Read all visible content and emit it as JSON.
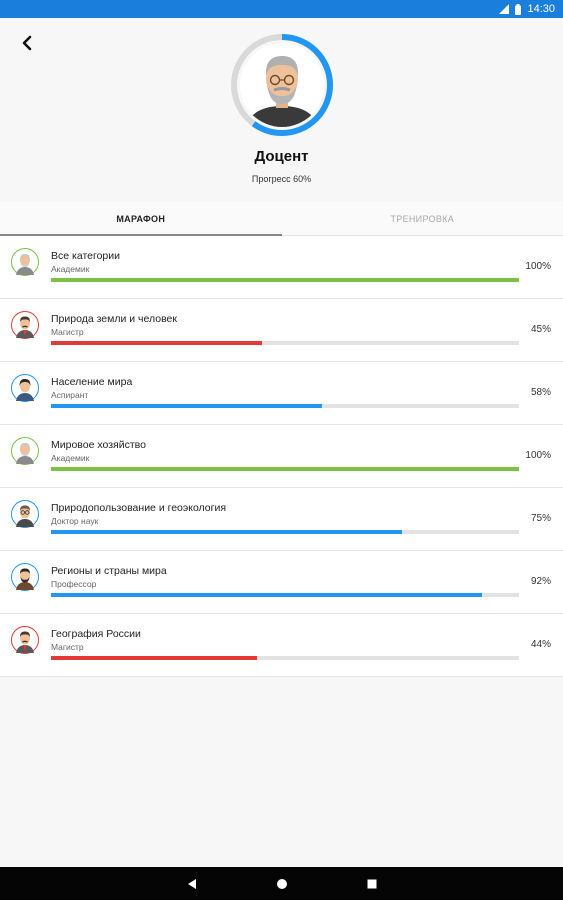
{
  "status_bar": {
    "time": "14:30"
  },
  "header": {
    "title": "Доцент",
    "progress_text": "Прогресс 60%",
    "progress_value": 0.6
  },
  "tabs": [
    {
      "label": "МАРАФОН",
      "active": true
    },
    {
      "label": "ТРЕНИРОВКА",
      "active": false
    }
  ],
  "categories": [
    {
      "title": "Все категории",
      "rank": "Академик",
      "percent_text": "100%",
      "value": 1.0,
      "color": "#7cc142",
      "avatar": "academic-avatar-icon"
    },
    {
      "title": "Природа земли и человек",
      "rank": "Магистр",
      "percent_text": "45%",
      "value": 0.45,
      "color": "#e53935",
      "avatar": "master-avatar-icon"
    },
    {
      "title": "Население мира",
      "rank": "Аспирант",
      "percent_text": "58%",
      "value": 0.58,
      "color": "#2196f3",
      "avatar": "postgrad-avatar-icon"
    },
    {
      "title": "Мировое хозяйство",
      "rank": "Академик",
      "percent_text": "100%",
      "value": 1.0,
      "color": "#7cc142",
      "avatar": "academic-avatar-icon"
    },
    {
      "title": "Природопользование и геоэкология",
      "rank": "Доктор наук",
      "percent_text": "75%",
      "value": 0.75,
      "color": "#2196f3",
      "avatar": "doctor-avatar-icon"
    },
    {
      "title": "Регионы и страны мира",
      "rank": "Профессор",
      "percent_text": "92%",
      "value": 0.92,
      "color": "#2196f3",
      "avatar": "professor-avatar-icon"
    },
    {
      "title": "География России",
      "rank": "Магистр",
      "percent_text": "44%",
      "value": 0.44,
      "color": "#e53935",
      "avatar": "master-avatar-icon"
    }
  ],
  "colors": {
    "status_bar": "#1a7fdc",
    "profile_ring": "#2196f3",
    "ring_track": "#d9d9d9",
    "nav_bar": "#050505"
  }
}
